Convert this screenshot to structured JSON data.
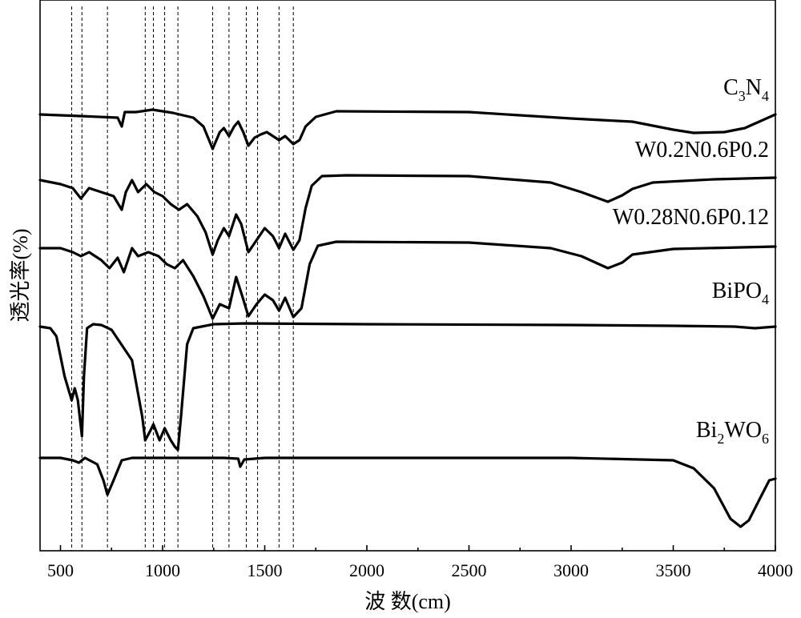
{
  "chart_data": {
    "type": "line",
    "xlabel": "波 数(cm)",
    "ylabel": "透光率(%)",
    "xlim": [
      400,
      4000
    ],
    "xticks": [
      500,
      1000,
      1500,
      2000,
      2500,
      3000,
      3500,
      4000
    ],
    "y_units": "arbitrary (stacked spectra)",
    "grid": false,
    "reference_lines_x": [
      555,
      605,
      730,
      915,
      955,
      1010,
      1075,
      1245,
      1325,
      1410,
      1465,
      1570,
      1640
    ],
    "series": [
      {
        "name": "C3N4",
        "label_parts": [
          [
            "C",
            ""
          ],
          [
            "3",
            "sub"
          ],
          [
            "N",
            ""
          ],
          [
            "4",
            "sub"
          ]
        ],
        "points": [
          [
            400,
            143
          ],
          [
            600,
            145
          ],
          [
            780,
            147
          ],
          [
            800,
            158
          ],
          [
            815,
            140
          ],
          [
            870,
            140
          ],
          [
            950,
            137
          ],
          [
            1050,
            141
          ],
          [
            1150,
            147
          ],
          [
            1200,
            158
          ],
          [
            1245,
            186
          ],
          [
            1280,
            165
          ],
          [
            1300,
            160
          ],
          [
            1325,
            170
          ],
          [
            1350,
            158
          ],
          [
            1370,
            152
          ],
          [
            1395,
            165
          ],
          [
            1420,
            182
          ],
          [
            1450,
            172
          ],
          [
            1480,
            168
          ],
          [
            1510,
            165
          ],
          [
            1540,
            170
          ],
          [
            1570,
            175
          ],
          [
            1600,
            170
          ],
          [
            1640,
            180
          ],
          [
            1670,
            175
          ],
          [
            1700,
            158
          ],
          [
            1750,
            146
          ],
          [
            1850,
            139
          ],
          [
            2500,
            140
          ],
          [
            3000,
            148
          ],
          [
            3300,
            152
          ],
          [
            3500,
            162
          ],
          [
            3600,
            166
          ],
          [
            3750,
            165
          ],
          [
            3850,
            160
          ],
          [
            4000,
            143
          ]
        ]
      },
      {
        "name": "W0.2N0.6P0.2",
        "label_parts": [
          [
            "W0.2N0.6P0.2",
            ""
          ]
        ],
        "points": [
          [
            400,
            225
          ],
          [
            500,
            230
          ],
          [
            560,
            235
          ],
          [
            600,
            248
          ],
          [
            640,
            235
          ],
          [
            700,
            240
          ],
          [
            760,
            245
          ],
          [
            800,
            262
          ],
          [
            820,
            240
          ],
          [
            850,
            225
          ],
          [
            880,
            240
          ],
          [
            920,
            230
          ],
          [
            960,
            240
          ],
          [
            1000,
            245
          ],
          [
            1040,
            255
          ],
          [
            1080,
            262
          ],
          [
            1120,
            255
          ],
          [
            1170,
            270
          ],
          [
            1210,
            290
          ],
          [
            1245,
            318
          ],
          [
            1270,
            300
          ],
          [
            1300,
            285
          ],
          [
            1325,
            295
          ],
          [
            1360,
            268
          ],
          [
            1385,
            280
          ],
          [
            1420,
            315
          ],
          [
            1460,
            300
          ],
          [
            1500,
            285
          ],
          [
            1540,
            295
          ],
          [
            1570,
            310
          ],
          [
            1600,
            292
          ],
          [
            1640,
            312
          ],
          [
            1670,
            300
          ],
          [
            1700,
            260
          ],
          [
            1730,
            232
          ],
          [
            1780,
            220
          ],
          [
            1900,
            219
          ],
          [
            2500,
            220
          ],
          [
            2900,
            228
          ],
          [
            3050,
            240
          ],
          [
            3180,
            252
          ],
          [
            3250,
            244
          ],
          [
            3300,
            236
          ],
          [
            3400,
            228
          ],
          [
            3700,
            224
          ],
          [
            4000,
            222
          ]
        ]
      },
      {
        "name": "W0.28N0.6P0.12",
        "label_parts": [
          [
            "W0.28N0.6P0.12",
            ""
          ]
        ],
        "points": [
          [
            400,
            310
          ],
          [
            500,
            310
          ],
          [
            560,
            315
          ],
          [
            600,
            320
          ],
          [
            640,
            315
          ],
          [
            700,
            325
          ],
          [
            740,
            335
          ],
          [
            780,
            322
          ],
          [
            810,
            340
          ],
          [
            850,
            310
          ],
          [
            880,
            320
          ],
          [
            930,
            315
          ],
          [
            980,
            320
          ],
          [
            1020,
            330
          ],
          [
            1060,
            335
          ],
          [
            1100,
            325
          ],
          [
            1150,
            345
          ],
          [
            1200,
            370
          ],
          [
            1245,
            398
          ],
          [
            1280,
            380
          ],
          [
            1325,
            385
          ],
          [
            1360,
            346
          ],
          [
            1390,
            370
          ],
          [
            1420,
            395
          ],
          [
            1460,
            380
          ],
          [
            1500,
            368
          ],
          [
            1540,
            375
          ],
          [
            1570,
            388
          ],
          [
            1600,
            372
          ],
          [
            1640,
            396
          ],
          [
            1680,
            385
          ],
          [
            1720,
            330
          ],
          [
            1760,
            307
          ],
          [
            1850,
            302
          ],
          [
            2500,
            303
          ],
          [
            2900,
            310
          ],
          [
            3050,
            320
          ],
          [
            3180,
            335
          ],
          [
            3250,
            328
          ],
          [
            3300,
            318
          ],
          [
            3500,
            311
          ],
          [
            4000,
            308
          ]
        ]
      },
      {
        "name": "BiPO4",
        "label_parts": [
          [
            "BiPO",
            ""
          ],
          [
            "4",
            "sub"
          ]
        ],
        "points": [
          [
            400,
            408
          ],
          [
            450,
            410
          ],
          [
            480,
            420
          ],
          [
            520,
            470
          ],
          [
            555,
            500
          ],
          [
            570,
            485
          ],
          [
            585,
            500
          ],
          [
            605,
            545
          ],
          [
            615,
            470
          ],
          [
            630,
            410
          ],
          [
            660,
            405
          ],
          [
            700,
            406
          ],
          [
            750,
            412
          ],
          [
            850,
            450
          ],
          [
            900,
            520
          ],
          [
            915,
            550
          ],
          [
            940,
            538
          ],
          [
            955,
            530
          ],
          [
            985,
            550
          ],
          [
            1010,
            535
          ],
          [
            1040,
            550
          ],
          [
            1060,
            558
          ],
          [
            1075,
            562
          ],
          [
            1090,
            520
          ],
          [
            1120,
            430
          ],
          [
            1150,
            410
          ],
          [
            1250,
            405
          ],
          [
            1400,
            404
          ],
          [
            2000,
            405
          ],
          [
            3000,
            406
          ],
          [
            3500,
            407
          ],
          [
            3800,
            408
          ],
          [
            3900,
            410
          ],
          [
            4000,
            408
          ]
        ]
      },
      {
        "name": "Bi2WO6",
        "label_parts": [
          [
            "Bi",
            ""
          ],
          [
            "2",
            "sub"
          ],
          [
            "WO",
            ""
          ],
          [
            "6",
            "sub"
          ]
        ],
        "points": [
          [
            400,
            572
          ],
          [
            500,
            572
          ],
          [
            560,
            575
          ],
          [
            590,
            578
          ],
          [
            620,
            572
          ],
          [
            680,
            580
          ],
          [
            710,
            600
          ],
          [
            730,
            618
          ],
          [
            760,
            600
          ],
          [
            800,
            575
          ],
          [
            850,
            572
          ],
          [
            1000,
            572
          ],
          [
            1300,
            572
          ],
          [
            1370,
            573
          ],
          [
            1380,
            583
          ],
          [
            1400,
            574
          ],
          [
            1500,
            572
          ],
          [
            2000,
            572
          ],
          [
            3000,
            572
          ],
          [
            3500,
            575
          ],
          [
            3600,
            585
          ],
          [
            3700,
            610
          ],
          [
            3780,
            648
          ],
          [
            3830,
            658
          ],
          [
            3870,
            650
          ],
          [
            3930,
            620
          ],
          [
            3970,
            600
          ],
          [
            4000,
            598
          ]
        ]
      }
    ]
  }
}
